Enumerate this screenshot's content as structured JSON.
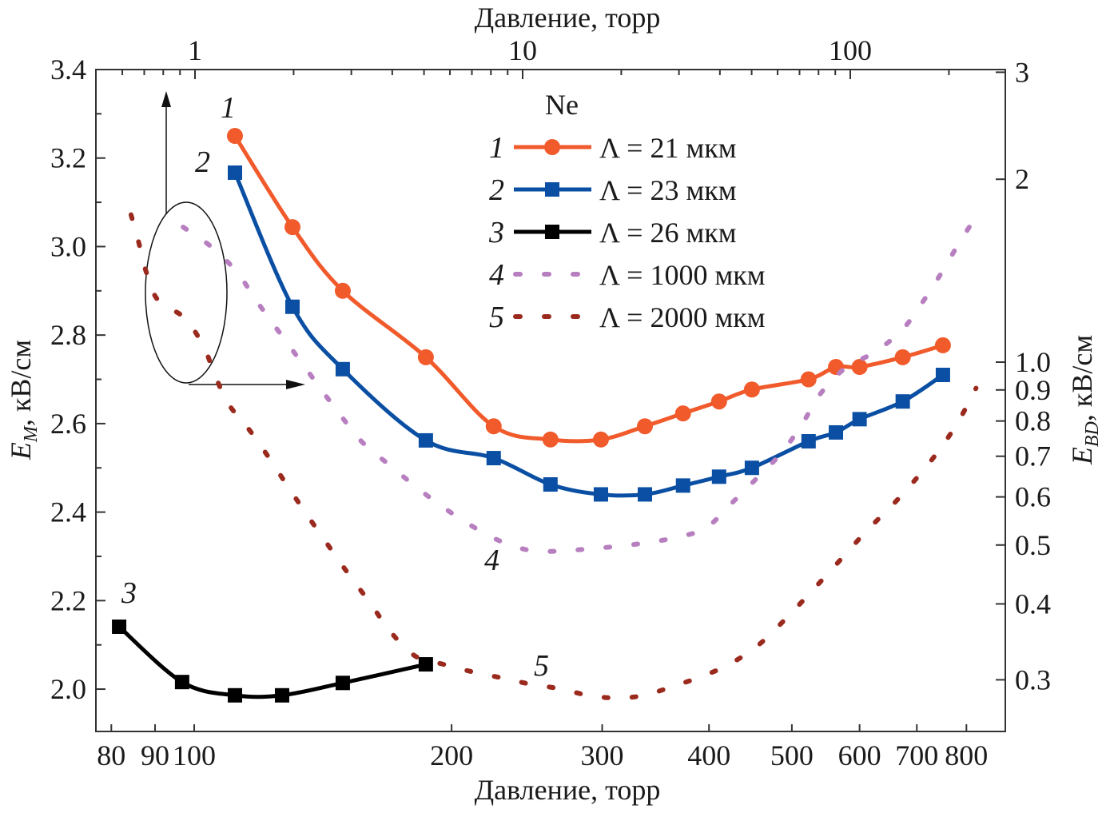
{
  "chart_data": {
    "type": "line",
    "legend_title": "Ne",
    "legend_placement": "top-center",
    "grid": false,
    "axes": {
      "bottom": {
        "label": "Давление, торр",
        "scale": "log",
        "range": [
          77,
          888
        ],
        "ticks": [
          80,
          90,
          100,
          200,
          300,
          400,
          500,
          600,
          700,
          800
        ],
        "tick_labels": [
          "80",
          "90",
          "100",
          "200",
          "300",
          "400",
          "500",
          "600",
          "700",
          "800"
        ]
      },
      "top": {
        "label": "Давление, торр",
        "scale": "log",
        "range": [
          0.5,
          300
        ],
        "ticks": [
          1,
          10,
          100
        ],
        "tick_labels": [
          "1",
          "10",
          "100"
        ]
      },
      "left": {
        "label_main": "E",
        "label_sub": "M",
        "label_rest": ", кВ/см",
        "scale": "linear",
        "range": [
          1.904,
          3.4
        ],
        "ticks": [
          2.0,
          2.2,
          2.4,
          2.6,
          2.8,
          3.0,
          3.2,
          3.4
        ],
        "tick_labels": [
          "2.0",
          "2.2",
          "2.4",
          "2.6",
          "2.8",
          "3.0",
          "3.2",
          "3.4"
        ]
      },
      "right": {
        "label_main": "E",
        "label_sub": "BD",
        "label_rest": ", кВ/см",
        "scale": "log",
        "range": [
          0.252,
          3
        ],
        "ticks": [
          0.3,
          0.4,
          0.5,
          0.6,
          0.7,
          0.8,
          0.9,
          1.0,
          2,
          3
        ],
        "tick_labels": [
          "0.3",
          "0.4",
          "0.5",
          "0.6",
          "0.7",
          "0.8",
          "0.9",
          "1.0",
          "2",
          "3"
        ]
      }
    },
    "series": [
      {
        "id": "1",
        "name": "Λ = 21 мкм",
        "color": "#f15a2b",
        "marker": "circle",
        "style": "solid",
        "x_axis": "bottom",
        "y_axis": "left",
        "points": [
          [
            111.6,
            3.25
          ],
          [
            130.3,
            3.044
          ],
          [
            149.2,
            2.9
          ],
          [
            186.6,
            2.75
          ],
          [
            224,
            2.594
          ],
          [
            261,
            2.564
          ],
          [
            299,
            2.564
          ],
          [
            336.6,
            2.594
          ],
          [
            373,
            2.623
          ],
          [
            411,
            2.65
          ],
          [
            449,
            2.677
          ],
          [
            523,
            2.7
          ],
          [
            563,
            2.728
          ],
          [
            600,
            2.728
          ],
          [
            674,
            2.75
          ],
          [
            751,
            2.777
          ]
        ]
      },
      {
        "id": "2",
        "name": "Λ = 23 мкм",
        "color": "#0a4fa3",
        "marker": "square",
        "style": "solid",
        "x_axis": "bottom",
        "y_axis": "left",
        "points": [
          [
            111.6,
            3.167
          ],
          [
            130.3,
            2.864
          ],
          [
            149.2,
            2.723
          ],
          [
            186.6,
            2.562
          ],
          [
            224,
            2.522
          ],
          [
            261,
            2.4625
          ],
          [
            299,
            2.44
          ],
          [
            336.6,
            2.44
          ],
          [
            373,
            2.46
          ],
          [
            411,
            2.48
          ],
          [
            449,
            2.5
          ],
          [
            523,
            2.56
          ],
          [
            563,
            2.58
          ],
          [
            600,
            2.61
          ],
          [
            674,
            2.65
          ],
          [
            751,
            2.71
          ]
        ]
      },
      {
        "id": "3",
        "name": "Λ = 26 мкм",
        "color": "#000000",
        "marker": "square",
        "style": "solid",
        "x_axis": "bottom",
        "y_axis": "left",
        "points": [
          [
            81.7,
            2.141
          ],
          [
            96.8,
            2.016
          ],
          [
            111.6,
            1.986
          ],
          [
            126.7,
            1.986
          ],
          [
            149.2,
            2.014
          ],
          [
            186.6,
            2.056
          ]
        ]
      },
      {
        "id": "4",
        "name": "Λ = 1000 мкм",
        "color": "#b87fc0",
        "marker": "none",
        "style": "dotted",
        "x_axis": "top",
        "y_axis": "right",
        "points": [
          [
            0.92,
            1.668
          ],
          [
            1.11,
            1.555
          ],
          [
            1.34,
            1.409
          ],
          [
            1.53,
            1.268
          ],
          [
            1.78,
            1.133
          ],
          [
            2.06,
            1.018
          ],
          [
            2.39,
            0.912
          ],
          [
            2.76,
            0.822
          ],
          [
            3.25,
            0.737
          ],
          [
            3.95,
            0.675
          ],
          [
            4.84,
            0.617
          ],
          [
            5.94,
            0.569
          ],
          [
            7.27,
            0.531
          ],
          [
            8.88,
            0.503
          ],
          [
            10.8,
            0.489
          ],
          [
            13.2,
            0.489
          ],
          [
            16.1,
            0.493
          ],
          [
            19.8,
            0.498
          ],
          [
            24.3,
            0.505
          ],
          [
            29.6,
            0.515
          ],
          [
            36.2,
            0.533
          ],
          [
            42.9,
            0.582
          ],
          [
            51.4,
            0.641
          ],
          [
            61.9,
            0.711
          ],
          [
            71.5,
            0.793
          ],
          [
            80.7,
            0.884
          ],
          [
            96.1,
            0.976
          ],
          [
            119,
            1.04
          ],
          [
            144,
            1.13
          ],
          [
            167,
            1.26
          ],
          [
            190,
            1.404
          ],
          [
            214,
            1.565
          ],
          [
            244,
            1.748
          ]
        ]
      },
      {
        "id": "5",
        "name": "Λ = 2000 мкм",
        "color": "#9b2a1e",
        "marker": "none",
        "style": "dotted",
        "x_axis": "top",
        "y_axis": "right",
        "points": [
          [
            0.638,
            1.748
          ],
          [
            0.674,
            1.571
          ],
          [
            0.71,
            1.407
          ],
          [
            0.771,
            1.265
          ],
          [
            0.93,
            1.182
          ],
          [
            1.06,
            1.063
          ],
          [
            1.15,
            0.954
          ],
          [
            1.26,
            0.856
          ],
          [
            1.48,
            0.768
          ],
          [
            1.7,
            0.69
          ],
          [
            1.94,
            0.619
          ],
          [
            2.22,
            0.556
          ],
          [
            2.56,
            0.498
          ],
          [
            2.95,
            0.447
          ],
          [
            3.43,
            0.401
          ],
          [
            3.95,
            0.36
          ],
          [
            4.71,
            0.328
          ],
          [
            5.75,
            0.318
          ],
          [
            7.06,
            0.309
          ],
          [
            8.69,
            0.302
          ],
          [
            10.6,
            0.295
          ],
          [
            13.0,
            0.29
          ],
          [
            15.8,
            0.283
          ],
          [
            19.3,
            0.28
          ],
          [
            23.6,
            0.283
          ],
          [
            28.9,
            0.293
          ],
          [
            35.3,
            0.304
          ],
          [
            43.1,
            0.319
          ],
          [
            52.7,
            0.343
          ],
          [
            64.4,
            0.381
          ],
          [
            77.9,
            0.425
          ],
          [
            93.4,
            0.473
          ],
          [
            112,
            0.527
          ],
          [
            137,
            0.588
          ],
          [
            164,
            0.656
          ],
          [
            192,
            0.731
          ],
          [
            218,
            0.814
          ],
          [
            242,
            0.906
          ]
        ]
      }
    ],
    "curve_labels": [
      {
        "text": "1",
        "color": "#e8393a"
      },
      {
        "text": "2",
        "color": "#2b3a90"
      },
      {
        "text": "3",
        "color": "#1a1a1a"
      },
      {
        "text": "4",
        "color": "#5b2d8f"
      },
      {
        "text": "5",
        "color": "#5a3a10"
      }
    ]
  }
}
